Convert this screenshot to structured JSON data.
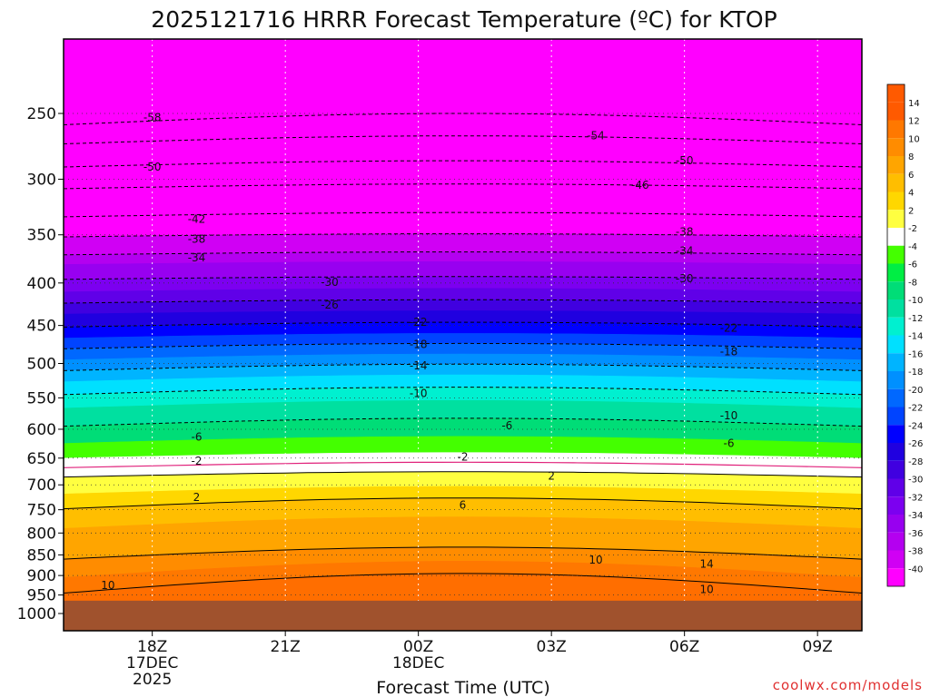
{
  "chart_data": {
    "type": "heatmap",
    "title": "2025121716 HRRR Forecast Temperature (ºC) for KTOP",
    "xlabel": "Forecast Time (UTC)",
    "ylabel": "",
    "credit": "coolwx.com/models",
    "x_axis": {
      "ticks": [
        {
          "hour": 18,
          "lines": [
            "18Z",
            "17DEC",
            "2025"
          ]
        },
        {
          "hour": 21,
          "lines": [
            "21Z"
          ]
        },
        {
          "hour": 24,
          "lines": [
            "00Z",
            "18DEC"
          ]
        },
        {
          "hour": 27,
          "lines": [
            "03Z"
          ]
        },
        {
          "hour": 30,
          "lines": [
            "06Z"
          ]
        },
        {
          "hour": 33,
          "lines": [
            "09Z"
          ]
        }
      ],
      "xlim": [
        16,
        34
      ]
    },
    "y_axis": {
      "ticks": [
        250,
        300,
        350,
        400,
        450,
        500,
        550,
        600,
        650,
        700,
        750,
        800,
        850,
        900,
        950,
        1000
      ],
      "reversed": true,
      "log_scale": true
    },
    "surface_level": 965,
    "colorbar": {
      "labels": [
        "14",
        "12",
        "10",
        "8",
        "6",
        "4",
        "2",
        "-2",
        "-4",
        "-6",
        "-8",
        "-10",
        "-12",
        "-14",
        "-16",
        "-18",
        "-20",
        "-22",
        "-24",
        "-26",
        "-28",
        "-30",
        "-32",
        "-34",
        "-36",
        "-38",
        "-40"
      ],
      "colors": [
        "#ff5a00",
        "#ff7800",
        "#ff8c00",
        "#ffa500",
        "#ffbe00",
        "#ffd700",
        "#ffff40",
        "#ffffff",
        "#44ff00",
        "#00ee44",
        "#00dd77",
        "#00e0a0",
        "#00f0d0",
        "#00e0ff",
        "#00b4ff",
        "#0090ff",
        "#0068ff",
        "#0044ff",
        "#0000ff",
        "#2000e0",
        "#4000e0",
        "#6000e8",
        "#7c00f0",
        "#9800f0",
        "#b400f0",
        "#d000f4",
        "#ff00ff"
      ]
    },
    "contours": [
      {
        "label": "-58",
        "label_at": [
          18.0,
          253
        ]
      },
      {
        "label": "-54",
        "label_at": [
          28.0,
          266
        ]
      },
      {
        "label": "-50",
        "label_at": [
          18.0,
          290
        ]
      },
      {
        "label": "-50",
        "label_at": [
          30.0,
          285
        ]
      },
      {
        "label": "-46",
        "label_at": [
          29.0,
          305
        ]
      },
      {
        "label": "-42",
        "label_at": [
          19.0,
          335
        ]
      },
      {
        "label": "-38",
        "label_at": [
          19.0,
          354
        ]
      },
      {
        "label": "-38",
        "label_at": [
          30.0,
          347
        ]
      },
      {
        "label": "-34",
        "label_at": [
          19.0,
          373
        ]
      },
      {
        "label": "-34",
        "label_at": [
          30.0,
          366
        ]
      },
      {
        "label": "-30",
        "label_at": [
          22.0,
          399
        ]
      },
      {
        "label": "-30",
        "label_at": [
          30.0,
          395
        ]
      },
      {
        "label": "-26",
        "label_at": [
          22.0,
          425
        ]
      },
      {
        "label": "-22",
        "label_at": [
          24.0,
          446
        ]
      },
      {
        "label": "-22",
        "label_at": [
          31.0,
          453
        ]
      },
      {
        "label": "-18",
        "label_at": [
          24.0,
          474
        ]
      },
      {
        "label": "-18",
        "label_at": [
          31.0,
          484
        ]
      },
      {
        "label": "-14",
        "label_at": [
          24.0,
          503
        ]
      },
      {
        "label": "-10",
        "label_at": [
          24.0,
          543
        ]
      },
      {
        "label": "-10",
        "label_at": [
          31.0,
          578
        ]
      },
      {
        "label": "-6",
        "label_at": [
          19.0,
          613
        ]
      },
      {
        "label": "-6",
        "label_at": [
          26.0,
          594
        ]
      },
      {
        "label": "-6",
        "label_at": [
          31.0,
          624
        ]
      },
      {
        "label": "-2",
        "label_at": [
          19.0,
          655
        ]
      },
      {
        "label": "-2",
        "label_at": [
          25.0,
          648
        ]
      },
      {
        "label": "2",
        "label_at": [
          19.0,
          725
        ]
      },
      {
        "label": "2",
        "label_at": [
          27.0,
          683
        ]
      },
      {
        "label": "6",
        "label_at": [
          25.0,
          740
        ]
      },
      {
        "label": "10",
        "label_at": [
          17.0,
          925
        ]
      },
      {
        "label": "10",
        "label_at": [
          28.0,
          862
        ]
      },
      {
        "label": "10",
        "label_at": [
          30.5,
          935
        ]
      },
      {
        "label": "14",
        "label_at": [
          30.5,
          872
        ]
      }
    ]
  }
}
